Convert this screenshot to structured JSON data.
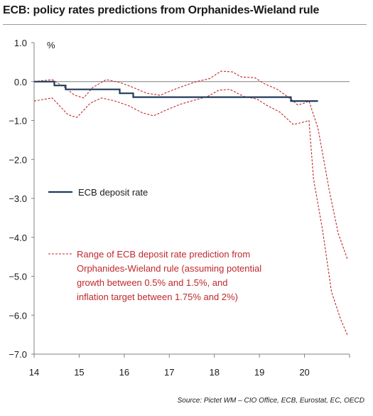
{
  "title": "ECB: policy rates predictions from Orphanides-Wieland rule",
  "source": "Source: Pictet WM – CIO Office, ECB, Eurostat, EC, OECD",
  "colors": {
    "deposit": "#1f3b5c",
    "range": "#c0282d",
    "axis": "#808080"
  },
  "chart_data": {
    "type": "line",
    "ylabel": "%",
    "ylim": [
      -7.0,
      1.0
    ],
    "yticks": [
      "1.0",
      "0.0",
      "-1.0",
      "-2.0",
      "-3.0",
      "-4.0",
      "-5.0",
      "-6.0",
      "-7.0"
    ],
    "xlim": [
      2014.0,
      2021.0
    ],
    "xticks": [
      "14",
      "15",
      "16",
      "17",
      "18",
      "19",
      "20"
    ],
    "series": [
      {
        "name": "ECB deposit rate",
        "style": "solid",
        "step": true,
        "points": [
          [
            2014.0,
            0.0
          ],
          [
            2014.45,
            0.0
          ],
          [
            2014.45,
            -0.1
          ],
          [
            2014.7,
            -0.1
          ],
          [
            2014.7,
            -0.2
          ],
          [
            2015.9,
            -0.2
          ],
          [
            2015.9,
            -0.3
          ],
          [
            2016.2,
            -0.3
          ],
          [
            2016.2,
            -0.4
          ],
          [
            2019.7,
            -0.4
          ],
          [
            2019.7,
            -0.5
          ],
          [
            2020.3,
            -0.5
          ]
        ]
      },
      {
        "name": "Range of ECB deposit rate prediction from Orphanides-Wieland rule (assuming potential growth between 0.5% and 1.5%, and inflation target between 1.75% and 2%)",
        "style": "dashed",
        "upper": [
          [
            2014.0,
            0.0
          ],
          [
            2014.15,
            0.02
          ],
          [
            2014.4,
            0.05
          ],
          [
            2014.65,
            -0.12
          ],
          [
            2014.9,
            -0.35
          ],
          [
            2015.1,
            -0.42
          ],
          [
            2015.3,
            -0.15
          ],
          [
            2015.6,
            0.05
          ],
          [
            2015.9,
            -0.02
          ],
          [
            2016.2,
            -0.15
          ],
          [
            2016.5,
            -0.3
          ],
          [
            2016.8,
            -0.35
          ],
          [
            2017.0,
            -0.25
          ],
          [
            2017.3,
            -0.12
          ],
          [
            2017.6,
            0.0
          ],
          [
            2017.9,
            0.08
          ],
          [
            2018.15,
            0.27
          ],
          [
            2018.4,
            0.25
          ],
          [
            2018.6,
            0.12
          ],
          [
            2018.9,
            0.1
          ],
          [
            2019.1,
            -0.05
          ],
          [
            2019.4,
            -0.2
          ],
          [
            2019.7,
            -0.45
          ],
          [
            2019.85,
            -0.6
          ],
          [
            2020.0,
            -0.55
          ],
          [
            2020.1,
            -0.5
          ],
          [
            2020.3,
            -1.2
          ],
          [
            2020.55,
            -2.8
          ],
          [
            2020.75,
            -3.9
          ],
          [
            2020.95,
            -4.55
          ]
        ],
        "lower": [
          [
            2014.0,
            -0.5
          ],
          [
            2014.4,
            -0.42
          ],
          [
            2014.75,
            -0.85
          ],
          [
            2014.95,
            -0.92
          ],
          [
            2015.25,
            -0.55
          ],
          [
            2015.5,
            -0.42
          ],
          [
            2015.8,
            -0.5
          ],
          [
            2016.1,
            -0.62
          ],
          [
            2016.4,
            -0.8
          ],
          [
            2016.65,
            -0.88
          ],
          [
            2016.95,
            -0.72
          ],
          [
            2017.25,
            -0.58
          ],
          [
            2017.55,
            -0.48
          ],
          [
            2017.85,
            -0.38
          ],
          [
            2018.1,
            -0.22
          ],
          [
            2018.35,
            -0.2
          ],
          [
            2018.65,
            -0.38
          ],
          [
            2018.95,
            -0.45
          ],
          [
            2019.15,
            -0.6
          ],
          [
            2019.45,
            -0.78
          ],
          [
            2019.75,
            -1.1
          ],
          [
            2019.95,
            -1.05
          ],
          [
            2020.1,
            -1.0
          ],
          [
            2020.2,
            -2.5
          ],
          [
            2020.4,
            -3.8
          ],
          [
            2020.6,
            -5.4
          ],
          [
            2020.8,
            -6.1
          ],
          [
            2020.95,
            -6.5
          ]
        ]
      }
    ],
    "legend": [
      {
        "label": "ECB deposit rate",
        "style": "solid"
      },
      {
        "lines": [
          "Range of ECB deposit rate prediction from",
          "Orphanides-Wieland rule (assuming potential",
          "growth between 0.5% and 1.5%, and",
          "inflation target between 1.75% and 2%)"
        ],
        "style": "dashed"
      }
    ]
  }
}
